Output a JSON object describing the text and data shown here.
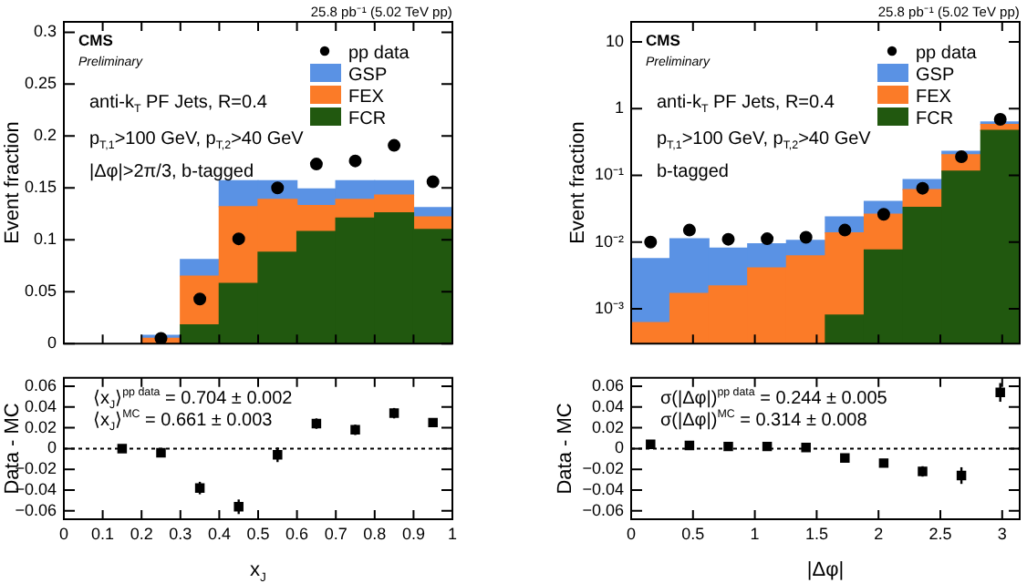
{
  "chart_data": [
    {
      "type": "bar",
      "subtitle": "25.8 pb⁻¹ (5.02 TeV pp)",
      "ylabel": "Event fraction",
      "stacked": true,
      "legend": "top right",
      "marker": "circle",
      "grid": false,
      "tick_labels": "y",
      "annotations": [
        "CMS",
        "Preliminary",
        "anti-k$_{T}$ PF Jets, R=0.4",
        "p$_{T,1}$>100 GeV, p$_{T,2}$>40 GeV",
        "|Δφ|>2π/3, b-tagged"
      ],
      "x": [
        0.25,
        0.35,
        0.45,
        0.55,
        0.65,
        0.75,
        0.85,
        0.95
      ],
      "xlim": [
        0,
        1
      ],
      "xticks": [
        0,
        0.1,
        0.2,
        0.3,
        0.4,
        0.5,
        0.6,
        0.7,
        0.8,
        0.9,
        1
      ],
      "ylim": [
        0,
        0.31
      ],
      "yticks": [
        0,
        0.05,
        0.1,
        0.15,
        0.2,
        0.25,
        0.3
      ],
      "series": [
        {
          "name": "pp data",
          "type": "scatter",
          "color": "#000000",
          "values": [
            0.005,
            0.043,
            0.101,
            0.15,
            0.173,
            0.176,
            0.191,
            0.156
          ],
          "errors": [
            0.001,
            0.003,
            0.004,
            0.004,
            0.004,
            0.004,
            0.004,
            0.004
          ]
        },
        {
          "name": "FCR",
          "color": "#21580f",
          "values": [
            null,
            0.018,
            0.058,
            0.088,
            0.108,
            0.121,
            0.126,
            0.11
          ]
        },
        {
          "name": "FEX",
          "color": "#fb7b28",
          "values": [
            0.005,
            0.047,
            0.074,
            0.051,
            0.025,
            0.018,
            0.017,
            0.012
          ]
        },
        {
          "name": "GSP",
          "color": "#5a92e4",
          "values": [
            0.003,
            0.016,
            0.025,
            0.018,
            0.016,
            0.018,
            0.014,
            0.009
          ]
        }
      ]
    },
    {
      "type": "bar",
      "subtitle": "25.8 pb⁻¹ (5.02 TeV pp)",
      "ylabel": "Event fraction",
      "stacked": true,
      "log": "y",
      "legend": "top right",
      "marker": "circle",
      "grid": false,
      "tick_labels": "y",
      "annotations": [
        "CMS",
        "Preliminary",
        "anti-k$_{T}$ PF Jets, R=0.4",
        "p$_{T,1}$>100 GeV, p$_{T,2}$>40 GeV",
        "b-tagged"
      ],
      "x": [
        0.1571,
        0.4712,
        0.7854,
        1.0996,
        1.4137,
        1.7279,
        2.042,
        2.3562,
        2.6704,
        2.9845
      ],
      "xlim": [
        0,
        3.1416
      ],
      "xticks": [
        0,
        0.5,
        1,
        1.5,
        2,
        2.5,
        3
      ],
      "ylim": [
        0.0003,
        20
      ],
      "yticks": [
        {
          "value": 0.001,
          "label": "10⁻³"
        },
        {
          "value": 0.01,
          "label": "10⁻²"
        },
        {
          "value": 0.1,
          "label": "10⁻¹"
        },
        1,
        10
      ],
      "series": [
        {
          "name": "pp data",
          "type": "scatter",
          "color": "#000000",
          "values": [
            0.01,
            0.0151,
            0.011,
            0.0112,
            0.0118,
            0.0151,
            0.026,
            0.064,
            0.19,
            0.69
          ]
        },
        {
          "name": "FCR",
          "color": "#21580f",
          "values": [
            null,
            null,
            null,
            null,
            null,
            0.0008,
            0.0076,
            0.033,
            0.115,
            0.47
          ]
        },
        {
          "name": "FEX",
          "color": "#fb7b28",
          "values": [
            0.00062,
            0.0017,
            0.0022,
            0.0041,
            0.0062,
            0.0129,
            0.0186,
            0.028,
            0.088,
            0.11
          ]
        },
        {
          "name": "GSP",
          "color": "#5a92e4",
          "values": [
            0.005,
            0.0095,
            0.0059,
            0.0053,
            0.0044,
            0.0101,
            0.0143,
            0.025,
            0.026,
            0.05
          ]
        }
      ]
    },
    {
      "type": "scatter",
      "xlabel": "x$_{J}$",
      "ylabel": "Data - MC",
      "marker": "square",
      "grid": false,
      "annotations": [
        "⟨x$_{J}$⟩$^{pp data}$ = 0.704 ± 0.002",
        "⟨x$_{J}$⟩$^{MC}$ = 0.661 ± 0.003"
      ],
      "x": [
        0.15,
        0.25,
        0.35,
        0.45,
        0.55,
        0.65,
        0.75,
        0.85,
        0.95
      ],
      "xlim": [
        0,
        1
      ],
      "xticks": [
        0,
        0.1,
        0.2,
        0.3,
        0.4,
        0.5,
        0.6,
        0.7,
        0.8,
        0.9,
        1
      ],
      "ylim": [
        -0.068,
        0.068
      ],
      "yticks": [
        {
          "value": -0.06,
          "label": "−0.06"
        },
        {
          "value": -0.04,
          "label": "−0.04"
        },
        {
          "value": -0.02,
          "label": "−0.02"
        },
        0,
        0.02,
        0.04,
        0.06
      ],
      "ref_lines": [
        {
          "axis": "y",
          "value": 0,
          "line_style": "dotted"
        }
      ],
      "series": [
        {
          "color": "#000000",
          "values": [
            0,
            -0.004,
            -0.038,
            -0.056,
            -0.006,
            0.024,
            0.018,
            0.034,
            0.025
          ],
          "errors": [
            0.003,
            0.003,
            0.006,
            0.007,
            0.007,
            0.005,
            0.005,
            0.005,
            0.003
          ]
        }
      ]
    },
    {
      "type": "scatter",
      "xlabel": "|Δφ|",
      "ylabel": "Data - MC",
      "marker": "square",
      "grid": false,
      "annotations": [
        "σ(|Δφ|)$^{pp data}$ = 0.244 ± 0.005",
        "σ(|Δφ|)$^{MC}$ = 0.314 ± 0.008"
      ],
      "x": [
        0.1571,
        0.4712,
        0.7854,
        1.0996,
        1.4137,
        1.7279,
        2.042,
        2.3562,
        2.6704,
        2.9845
      ],
      "xlim": [
        0,
        3.1416
      ],
      "xticks": [
        0,
        0.5,
        1,
        1.5,
        2,
        2.5,
        3
      ],
      "ylim": [
        -0.068,
        0.068
      ],
      "yticks": [
        {
          "value": -0.06,
          "label": "−0.06"
        },
        {
          "value": -0.04,
          "label": "−0.04"
        },
        {
          "value": -0.02,
          "label": "−0.02"
        },
        0,
        0.02,
        0.04,
        0.06
      ],
      "ref_lines": [
        {
          "axis": "y",
          "value": 0,
          "line_style": "dotted"
        }
      ],
      "series": [
        {
          "color": "#000000",
          "values": [
            0.004,
            0.003,
            0.002,
            0.002,
            0.001,
            -0.009,
            -0.014,
            -0.022,
            -0.026,
            0.054
          ],
          "errors": [
            0.002,
            0.002,
            0.002,
            0.002,
            0.002,
            0.002,
            0.003,
            0.005,
            0.008,
            0.009
          ]
        }
      ]
    }
  ]
}
